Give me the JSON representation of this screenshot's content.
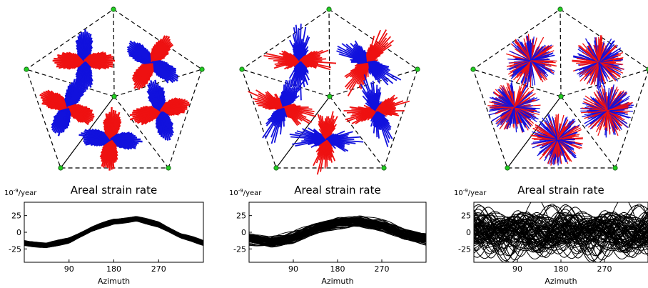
{
  "panels": [
    {
      "title": "Areal strain rate",
      "unit_base": "10",
      "unit_exp": "-9",
      "unit_suffix": "/year",
      "xlabel": "Azimuth"
    },
    {
      "title": "Areal strain rate",
      "unit_base": "10",
      "unit_exp": "-9",
      "unit_suffix": "/year",
      "xlabel": "Azimuth"
    },
    {
      "title": "Areal strain rate",
      "unit_base": "10",
      "unit_exp": "-9",
      "unit_suffix": "/year",
      "xlabel": "Azimuth"
    }
  ],
  "colors": {
    "positive": "#ee1111",
    "negative": "#1111dd",
    "node": "#22cc22",
    "curves": "#000000"
  },
  "chart_data": [
    {
      "type": "line",
      "title": "Areal strain rate",
      "ylabel": "10^-9/year",
      "xlabel": "Azimuth",
      "xlim": [
        0,
        360
      ],
      "ylim": [
        -45,
        45
      ],
      "xticks": [
        90,
        180,
        270
      ],
      "yticks": [
        25,
        0,
        -25
      ],
      "x": [
        0,
        45,
        90,
        135,
        180,
        225,
        270,
        315,
        360
      ],
      "series": [
        {
          "values": [
            -16,
            -20,
            -12,
            5,
            16,
            20,
            12,
            -5,
            -16
          ]
        }
      ],
      "ensemble_spread": 5,
      "ensemble_size": 60
    },
    {
      "type": "line",
      "title": "Areal strain rate",
      "ylabel": "10^-9/year",
      "xlabel": "Azimuth",
      "xlim": [
        0,
        360
      ],
      "ylim": [
        -45,
        45
      ],
      "xticks": [
        90,
        180,
        270
      ],
      "yticks": [
        25,
        0,
        -25
      ],
      "x": [
        0,
        45,
        90,
        135,
        180,
        225,
        270,
        315,
        360
      ],
      "series": [
        {
          "values": [
            -10,
            -14,
            -8,
            5,
            14,
            17,
            10,
            -3,
            -10
          ]
        }
      ],
      "ensemble_spread": 12,
      "ensemble_size": 70
    },
    {
      "type": "line",
      "title": "Areal strain rate",
      "ylabel": "10^-9/year",
      "xlabel": "Azimuth",
      "xlim": [
        0,
        360
      ],
      "ylim": [
        -45,
        45
      ],
      "xticks": [
        90,
        180,
        270
      ],
      "yticks": [
        25,
        0,
        -25
      ],
      "x": [
        0,
        45,
        90,
        135,
        180,
        225,
        270,
        315,
        360
      ],
      "series": [
        {
          "values": [
            0,
            0,
            0,
            0,
            0,
            0,
            0,
            0,
            0
          ]
        }
      ],
      "ensemble_spread": 28,
      "ensemble_size": 80
    }
  ]
}
